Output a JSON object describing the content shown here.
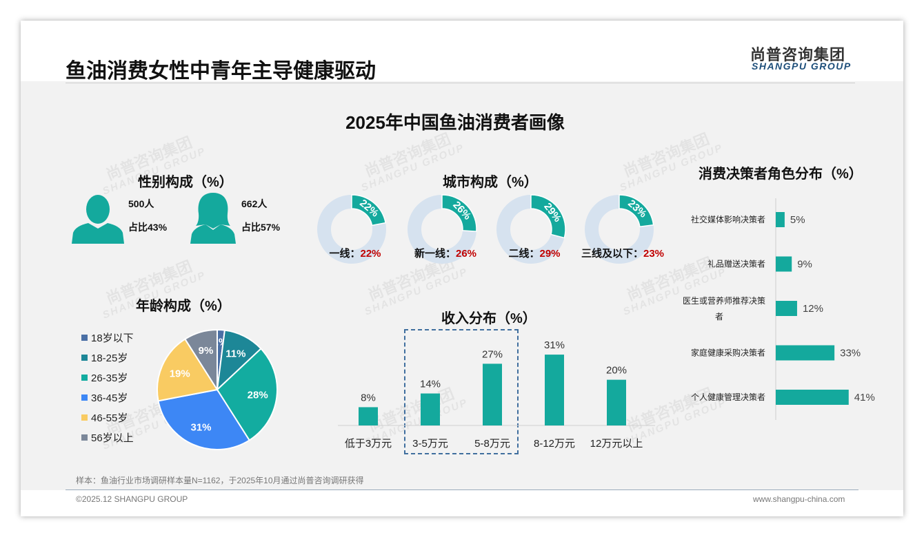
{
  "header": {
    "title": "鱼油消费女性中青年主导健康驱动",
    "logo_cn": "尚普咨询集团",
    "logo_en": "SHANGPU GROUP"
  },
  "main_title": "2025年中国鱼油消费者画像",
  "watermark": {
    "cn": "尚普咨询集团",
    "en": "SHANGPU GROUP"
  },
  "gender": {
    "title": "性别构成（%）",
    "male": {
      "count": "500人",
      "share": "占比43%"
    },
    "female": {
      "count": "662人",
      "share": "占比57%"
    }
  },
  "colors": {
    "teal": "#14a99d",
    "donut_bg": "#d6e2ef",
    "red": "#c00000"
  },
  "chart_data": [
    {
      "type": "pie",
      "title": "年龄构成（%）",
      "categories": [
        "18岁以下",
        "18-25岁",
        "26-35岁",
        "36-45岁",
        "46-55岁",
        "56岁以上"
      ],
      "values": [
        2,
        11,
        28,
        31,
        19,
        9
      ],
      "labels": [
        "2%",
        "11%",
        "28%",
        "31%",
        "19%",
        "9%"
      ],
      "colors": [
        "#4a6fa5",
        "#1d8797",
        "#13aca0",
        "#3d87f5",
        "#f9cb62",
        "#7b8799"
      ],
      "legend": "left"
    },
    {
      "type": "donut",
      "title": "城市构成（%）",
      "items": [
        {
          "name": "一线：",
          "value": 22,
          "label": "22%"
        },
        {
          "name": "新一线：",
          "value": 26,
          "label": "26%"
        },
        {
          "name": "二线：",
          "value": 29,
          "label": "29%"
        },
        {
          "name": "三线及以下：",
          "value": 23,
          "label": "23%"
        }
      ]
    },
    {
      "type": "bar",
      "title": "收入分布（%）",
      "categories": [
        "低于3万元",
        "3-5万元",
        "5-8万元",
        "8-12万元",
        "12万元以上"
      ],
      "values": [
        8,
        14,
        27,
        31,
        20
      ],
      "labels": [
        "8%",
        "14%",
        "27%",
        "31%",
        "20%"
      ],
      "highlight": [
        "3-5万元",
        "5-8万元"
      ]
    },
    {
      "type": "bar",
      "orientation": "horizontal",
      "title": "消费决策者角色分布（%）",
      "categories": [
        "社交媒体影响决策者",
        "礼品赠送决策者",
        "医生或营养师推荐决策者",
        "家庭健康采购决策者",
        "个人健康管理决策者"
      ],
      "values": [
        5,
        9,
        12,
        33,
        41
      ],
      "labels": [
        "5%",
        "9%",
        "12%",
        "33%",
        "41%"
      ]
    }
  ],
  "footer": {
    "note": "样本：鱼油行业市场调研样本量N=1162，于2025年10月通过尚普咨询调研获得",
    "copyright": "©2025.12 SHANGPU GROUP",
    "url": "www.shangpu-china.com"
  }
}
